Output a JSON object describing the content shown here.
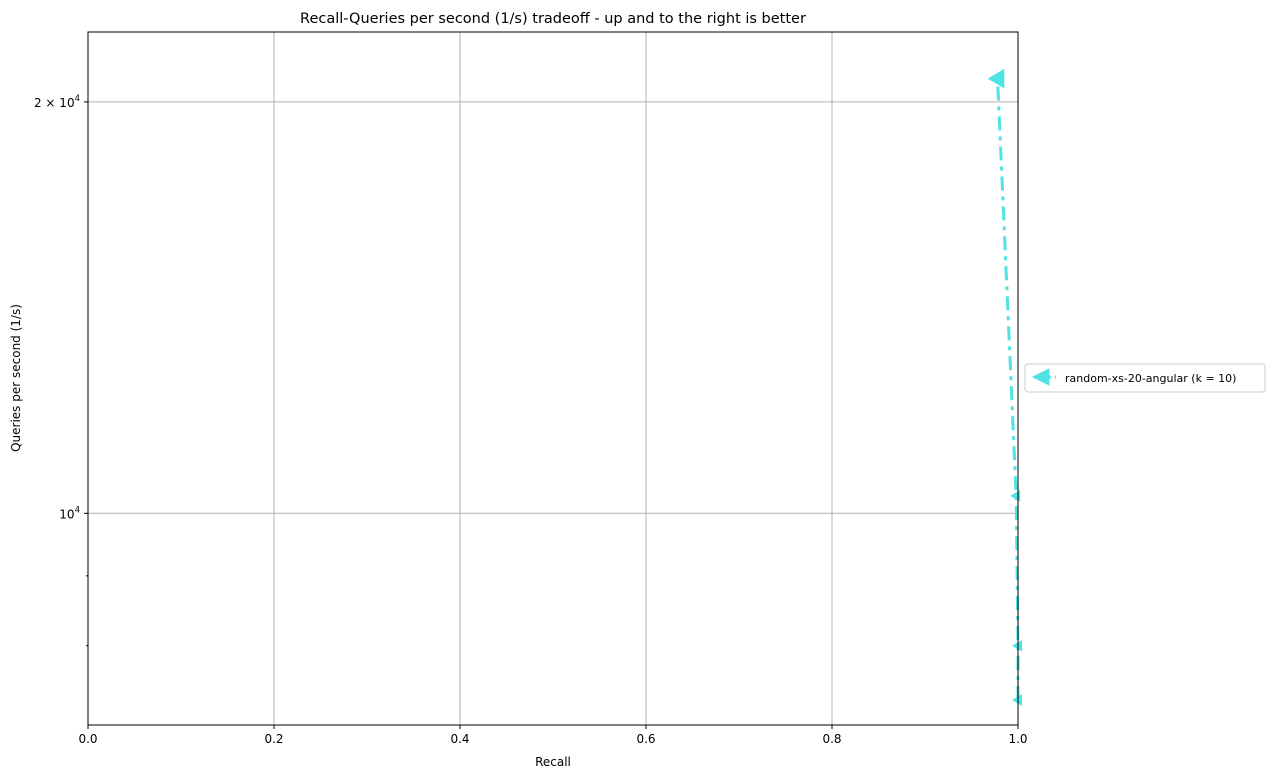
{
  "chart_data": {
    "type": "line",
    "title": "Recall-Queries per second (1/s) tradeoff - up and to the right is better",
    "xlabel": "Recall",
    "ylabel": "Queries per second (1/s)",
    "xlim": [
      0.0,
      1.0
    ],
    "ylim": [
      7000,
      22500
    ],
    "yscale": "log",
    "grid": true,
    "legend_position": "right",
    "x_ticks": [
      {
        "value": 0.0,
        "label": "0.0"
      },
      {
        "value": 0.2,
        "label": "0.2"
      },
      {
        "value": 0.4,
        "label": "0.4"
      },
      {
        "value": 0.6,
        "label": "0.6"
      },
      {
        "value": 0.8,
        "label": "0.8"
      },
      {
        "value": 1.0,
        "label": "1.0"
      }
    ],
    "y_major_ticks": [
      {
        "value": 10000,
        "base": "10",
        "exp": "4"
      },
      {
        "value": 20000,
        "base": "2 × 10",
        "exp": "4"
      }
    ],
    "y_minor_ticks": [
      8000,
      9000,
      30000
    ],
    "series": [
      {
        "name": "random-xs-20-angular (k = 10)",
        "color": "#50e3e3",
        "marker": "triangle-left",
        "linestyle": "dashdot",
        "x": [
          1.0,
          1.0,
          0.998,
          0.978
        ],
        "y": [
          7300,
          8000,
          10300,
          20800
        ]
      }
    ]
  }
}
